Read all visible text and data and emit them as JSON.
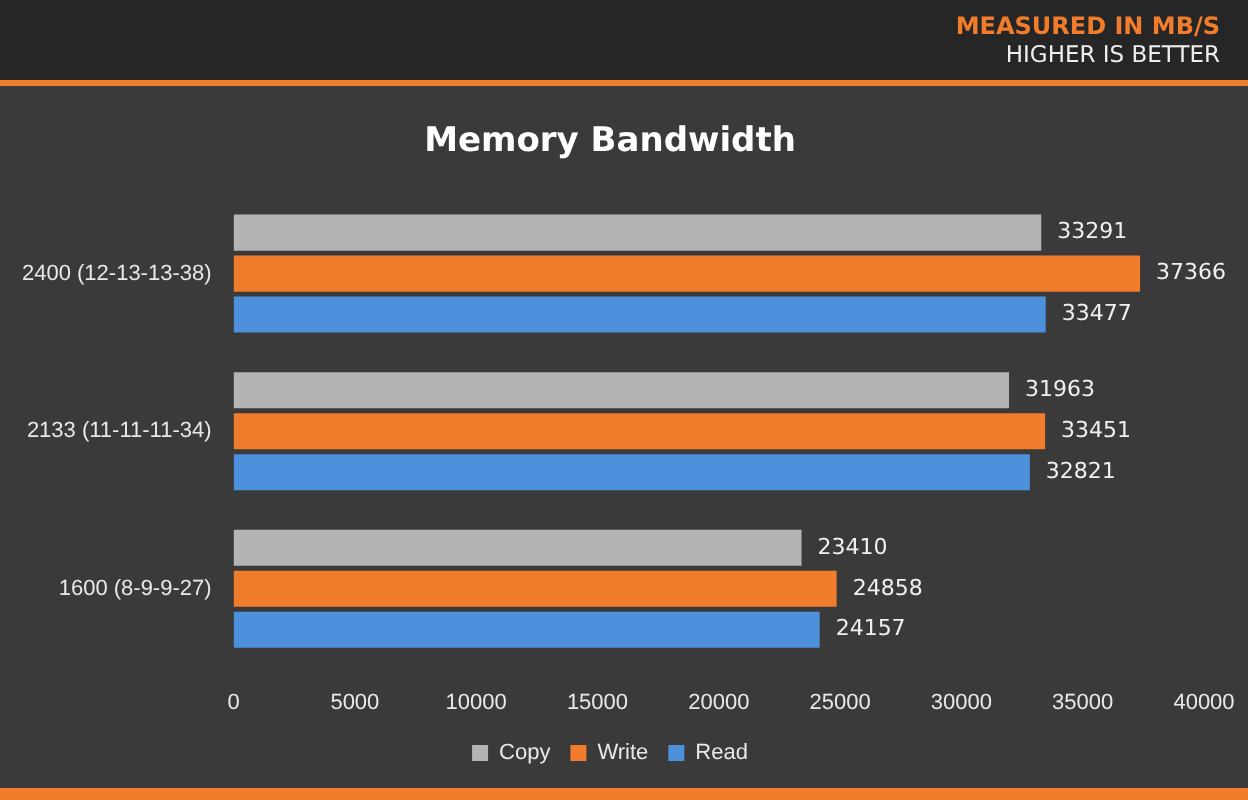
{
  "chart_data": {
    "type": "bar",
    "orientation": "horizontal",
    "title": "Memory Bandwidth",
    "annotations": [
      "MEASURED IN MB/S",
      "HIGHER IS BETTER"
    ],
    "categories": [
      "2400 (12-13-13-38)",
      "2133 (11-11-11-34)",
      "1600 (8-9-9-27)"
    ],
    "series": [
      {
        "name": "Copy",
        "color": "#b4b4b4",
        "values": [
          33291,
          31963,
          23410
        ]
      },
      {
        "name": "Write",
        "color": "#f07c2c",
        "values": [
          37366,
          33451,
          24858
        ]
      },
      {
        "name": "Read",
        "color": "#4d90db",
        "values": [
          33477,
          32821,
          24157
        ]
      }
    ],
    "xlim": [
      0,
      40000
    ],
    "xticks": [
      0,
      5000,
      10000,
      15000,
      20000,
      25000,
      30000,
      35000,
      40000
    ],
    "data_labels": true,
    "legend": "bottom",
    "grid": false
  }
}
